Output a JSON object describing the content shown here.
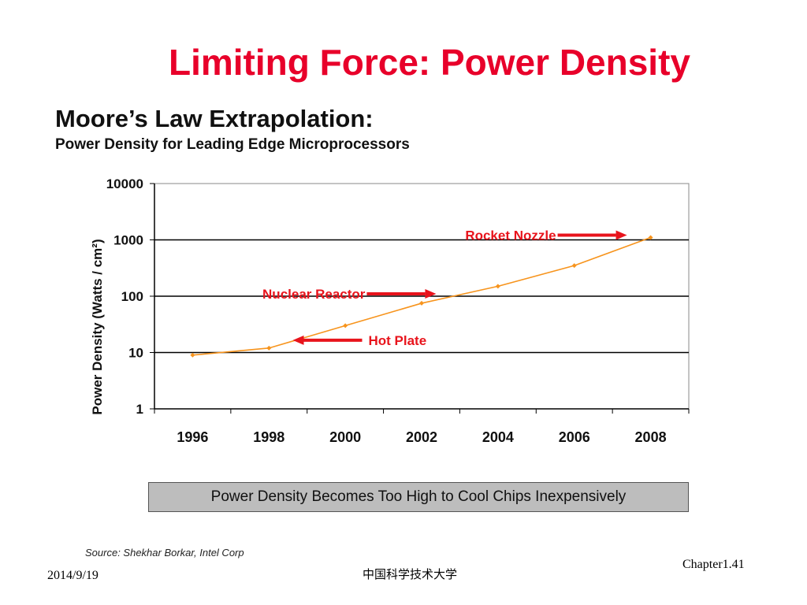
{
  "slide": {
    "title": "Limiting Force: Power Density",
    "callout": "Power Density Becomes Too High to Cool Chips Inexpensively",
    "source": "Source:  Shekhar Borkar, Intel Corp"
  },
  "footer": {
    "date": "2014/9/19",
    "center": "中国科学技术大学",
    "chapter": "Chapter1.41"
  },
  "chart_data": {
    "type": "line",
    "title": "Moore’s Law Extrapolation:",
    "subtitle": "Power Density for Leading Edge Microprocessors",
    "ylabel": "Power Density (Watts / cm²)",
    "xlabel": "",
    "y_scale": "log",
    "ylim": [
      1,
      10000
    ],
    "xlim": [
      1995,
      2009
    ],
    "x_ticks": [
      1996,
      1998,
      2000,
      2002,
      2004,
      2006,
      2008
    ],
    "x_tick_labels": [
      "1996",
      "1998",
      "2000",
      "2002",
      "2004",
      "2006",
      "2008"
    ],
    "y_ticks": [
      1,
      10,
      100,
      1000,
      10000
    ],
    "y_tick_labels": [
      "1",
      "10",
      "100",
      "1000",
      "10000"
    ],
    "grid": "horizontal",
    "series": [
      {
        "color": "#f7941d",
        "points": [
          {
            "x": 1996,
            "y": 9
          },
          {
            "x": 1998,
            "y": 12
          },
          {
            "x": 2000,
            "y": 30
          },
          {
            "x": 2002,
            "y": 75
          },
          {
            "x": 2004,
            "y": 150
          },
          {
            "x": 2006,
            "y": 350
          },
          {
            "x": 2008,
            "y": 1100
          }
        ]
      }
    ],
    "annotations": [
      {
        "text": "Rocket Nozzle",
        "at": {
          "x": 2008,
          "y": 1100
        },
        "side": "left",
        "color": "#e8141c"
      },
      {
        "text": "Nuclear Reactor",
        "at": {
          "x": 2003,
          "y": 100
        },
        "side": "left",
        "color": "#e8141c"
      },
      {
        "text": "Hot Plate",
        "at": {
          "x": 1998.5,
          "y": 15
        },
        "side": "right",
        "color": "#e8141c"
      }
    ]
  }
}
